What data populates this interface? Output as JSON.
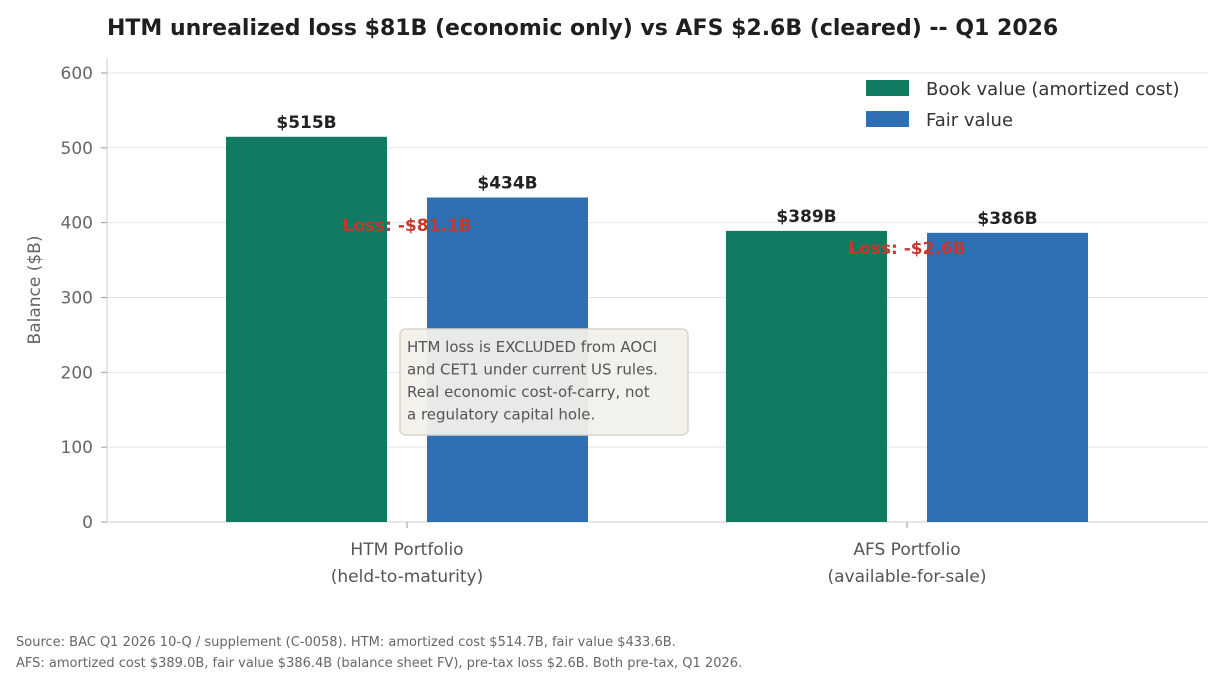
{
  "chart_data": {
    "type": "bar",
    "title": "HTM unrealized loss $81B (economic only) vs AFS $2.6B (cleared) -- Q1 2026",
    "ylabel": "Balance ($B)",
    "ylim": [
      0,
      620
    ],
    "yticks": [
      0,
      100,
      200,
      300,
      400,
      500,
      600
    ],
    "grid": true,
    "legend_position": "top-right",
    "categories": [
      [
        "HTM Portfolio",
        "(held-to-maturity)"
      ],
      [
        "AFS Portfolio",
        "(available-for-sale)"
      ]
    ],
    "series": [
      {
        "name": "Book value (amortized cost)",
        "color": "#107a62",
        "values": [
          514.7,
          389.0
        ],
        "labels": [
          "$515B",
          "$389B"
        ]
      },
      {
        "name": "Fair value",
        "color": "#2f6fb4",
        "values": [
          433.6,
          386.4
        ],
        "labels": [
          "$434B",
          "$386B"
        ]
      }
    ],
    "annotations": [
      {
        "text": "Loss: -$81.1B",
        "category": 0,
        "y": 397,
        "color": "#c0392b"
      },
      {
        "text": "Loss: -$2.6B",
        "category": 1,
        "y": 366,
        "color": "#c0392b"
      }
    ],
    "note": {
      "lines": [
        "HTM loss is EXCLUDED from AOCI",
        "and CET1 under current US rules.",
        "Real economic cost-of-carry, not",
        "a regulatory capital hole."
      ],
      "anchor_x": [
        0.5,
        200
      ]
    },
    "source": [
      "Source: BAC Q1 2026 10-Q / supplement (C-0058). HTM: amortized cost $514.7B, fair value $433.6B.",
      "AFS: amortized cost $389.0B, fair value $386.4B (balance sheet FV), pre-tax loss $2.6B. Both pre-tax, Q1 2026."
    ]
  }
}
